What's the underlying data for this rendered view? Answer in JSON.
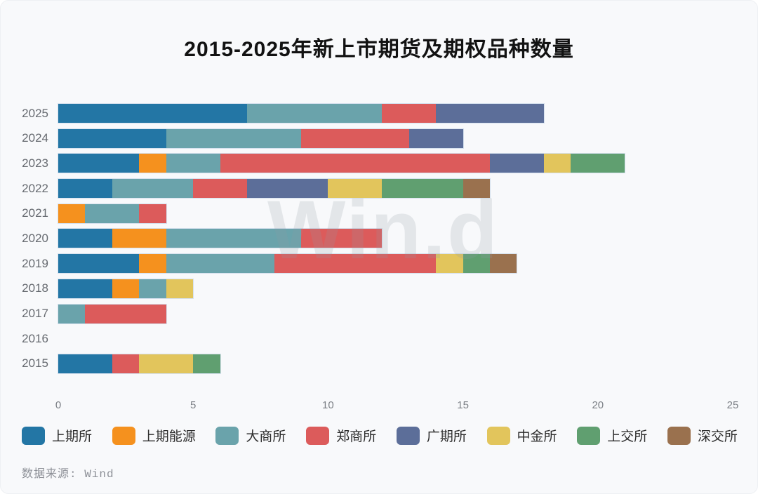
{
  "card": {
    "title": "2015-2025年新上市期货及期权品种数量",
    "watermark": "Win.d",
    "source": "数据来源: Wind"
  },
  "chart_data": {
    "type": "bar",
    "orientation": "horizontal",
    "stacked": true,
    "title": "2015-2025年新上市期货及期权品种数量",
    "categories": [
      "2025",
      "2024",
      "2023",
      "2022",
      "2021",
      "2020",
      "2019",
      "2018",
      "2017",
      "2016",
      "2015"
    ],
    "series": [
      {
        "name": "上期所",
        "color": "#2376A5",
        "values": [
          7,
          4,
          3,
          2,
          0,
          2,
          3,
          2,
          0,
          0,
          2
        ]
      },
      {
        "name": "上期能源",
        "color": "#F5911E",
        "values": [
          0,
          0,
          1,
          0,
          1,
          2,
          1,
          1,
          0,
          0,
          0
        ]
      },
      {
        "name": "大商所",
        "color": "#6AA3AB",
        "values": [
          5,
          5,
          2,
          3,
          2,
          5,
          4,
          1,
          1,
          0,
          0
        ]
      },
      {
        "name": "郑商所",
        "color": "#DC5B5B",
        "values": [
          2,
          4,
          10,
          2,
          1,
          3,
          6,
          0,
          3,
          0,
          1
        ]
      },
      {
        "name": "广期所",
        "color": "#5C6E99",
        "values": [
          4,
          2,
          2,
          3,
          0,
          0,
          0,
          0,
          0,
          0,
          0
        ]
      },
      {
        "name": "中金所",
        "color": "#E2C55C",
        "values": [
          0,
          0,
          1,
          2,
          0,
          0,
          1,
          1,
          0,
          0,
          2
        ]
      },
      {
        "name": "上交所",
        "color": "#609F70",
        "values": [
          0,
          0,
          2,
          3,
          0,
          0,
          1,
          0,
          0,
          0,
          1
        ]
      },
      {
        "name": "深交所",
        "color": "#9A714E",
        "values": [
          0,
          0,
          0,
          1,
          0,
          0,
          1,
          0,
          0,
          0,
          0
        ]
      }
    ],
    "totals": [
      18,
      15,
      21,
      16,
      4,
      12,
      17,
      5,
      4,
      0,
      6
    ],
    "xlim": [
      0,
      25
    ],
    "x_ticks": [
      0,
      5,
      10,
      15,
      20,
      25
    ],
    "grid": false,
    "legend_position": "bottom"
  }
}
